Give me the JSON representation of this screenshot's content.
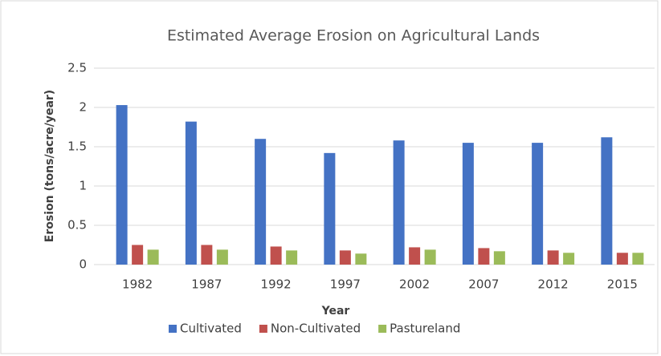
{
  "chart_data": {
    "type": "bar",
    "title": "Estimated Average Erosion on Agricultural Lands",
    "x_label": "Year",
    "y_label": "Erosion (tons/acre/year)",
    "categories": [
      "1982",
      "1987",
      "1992",
      "1997",
      "2002",
      "2007",
      "2012",
      "2015"
    ],
    "series": [
      {
        "name": "Cultivated",
        "color": "#4472c4",
        "values": [
          2.03,
          1.82,
          1.6,
          1.42,
          1.58,
          1.55,
          1.55,
          1.62
        ]
      },
      {
        "name": "Non-Cultivated",
        "color": "#c0504d",
        "values": [
          0.25,
          0.25,
          0.23,
          0.18,
          0.22,
          0.21,
          0.18,
          0.15
        ]
      },
      {
        "name": "Pastureland",
        "color": "#9bbb59",
        "values": [
          0.19,
          0.19,
          0.18,
          0.14,
          0.19,
          0.17,
          0.15,
          0.15
        ]
      }
    ],
    "ylim": [
      0,
      2.5
    ],
    "yticks": [
      0,
      0.5,
      1,
      1.5,
      2,
      2.5
    ],
    "grid": true,
    "legend": "bottom"
  }
}
